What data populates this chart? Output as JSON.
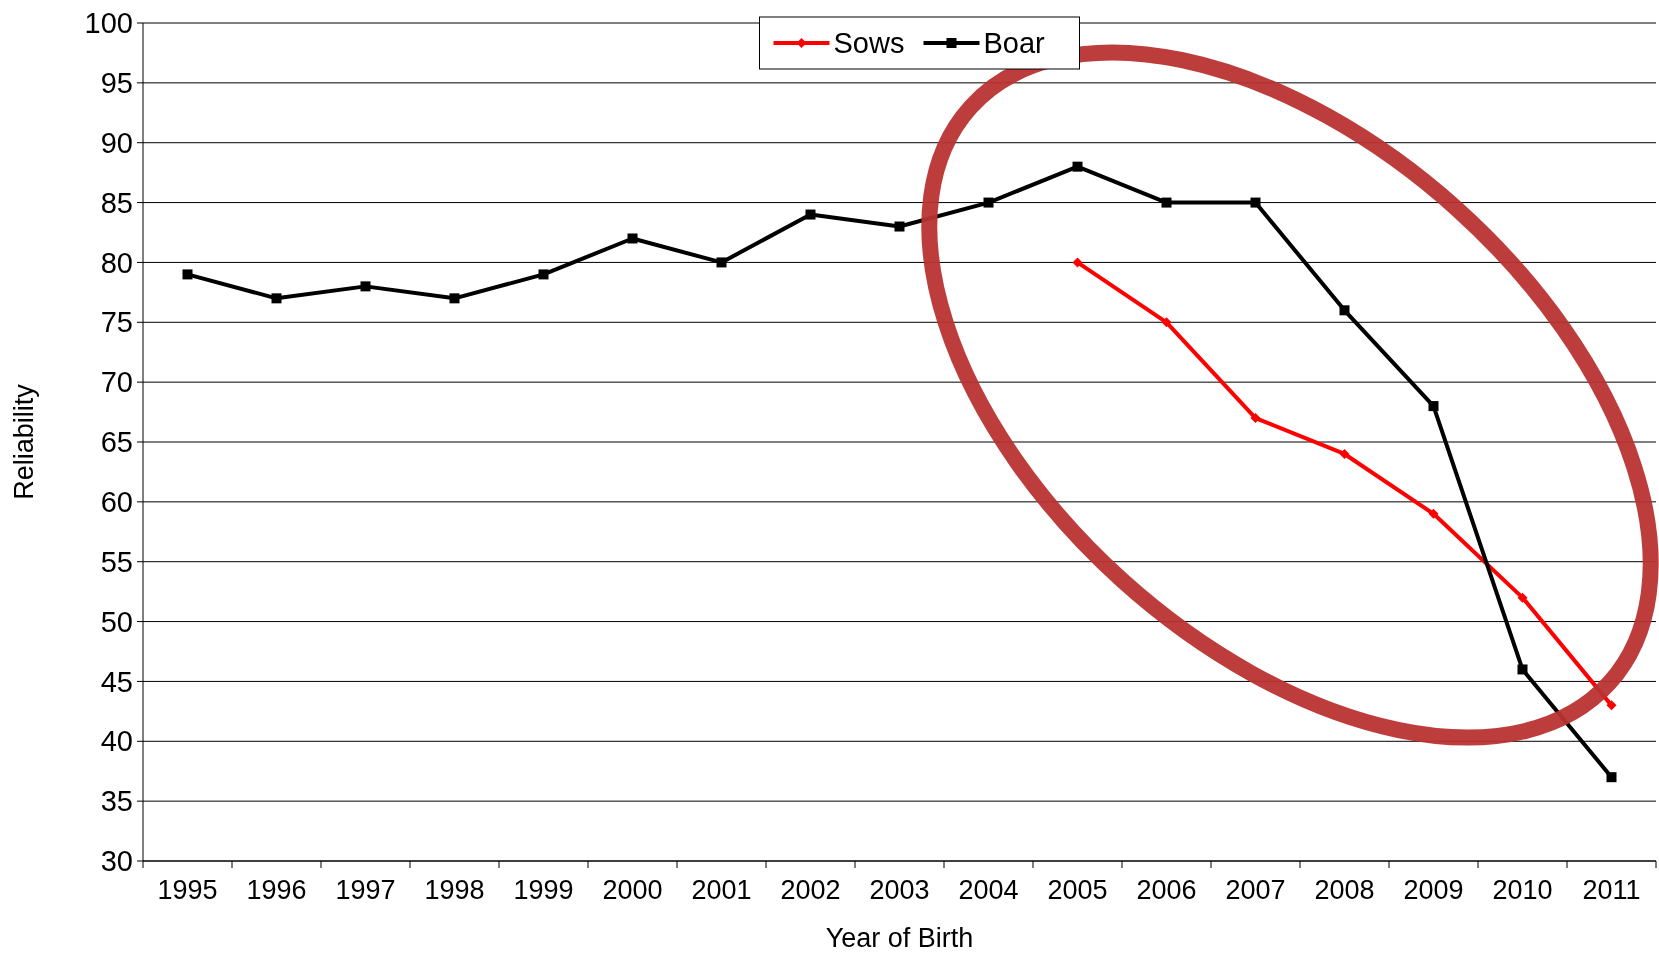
{
  "chart_data": {
    "type": "line",
    "xlabel": "Year of Birth",
    "ylabel": "Reliability",
    "categories": [
      "1995",
      "1996",
      "1997",
      "1998",
      "1999",
      "2000",
      "2001",
      "2002",
      "2003",
      "2004",
      "2005",
      "2006",
      "2007",
      "2008",
      "2009",
      "2010",
      "2011"
    ],
    "series": [
      {
        "name": "Sows",
        "color": "#ff0000",
        "marker": "diamond",
        "values": [
          null,
          null,
          null,
          null,
          null,
          null,
          null,
          null,
          null,
          null,
          80,
          75,
          67,
          64,
          59,
          52,
          43
        ]
      },
      {
        "name": "Boar",
        "color": "#000000",
        "marker": "square",
        "values": [
          79,
          77,
          78,
          77,
          79,
          82,
          80,
          84,
          83,
          85,
          88,
          85,
          85,
          76,
          68,
          46,
          37
        ]
      }
    ],
    "ylim": [
      30,
      100
    ],
    "yticks": [
      30,
      35,
      40,
      45,
      50,
      55,
      60,
      65,
      70,
      75,
      80,
      85,
      90,
      95,
      100
    ],
    "grid": "y",
    "legend": "top",
    "line_style": "solid"
  }
}
